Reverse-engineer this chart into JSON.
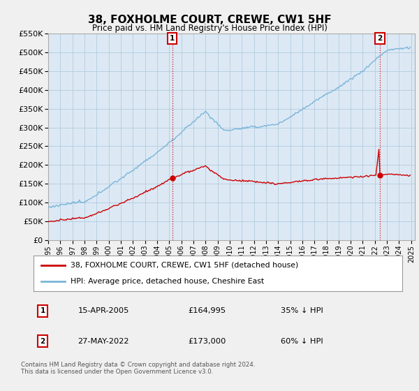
{
  "title": "38, FOXHOLME COURT, CREWE, CW1 5HF",
  "subtitle": "Price paid vs. HM Land Registry's House Price Index (HPI)",
  "ylim": [
    0,
    550000
  ],
  "yticks": [
    0,
    50000,
    100000,
    150000,
    200000,
    250000,
    300000,
    350000,
    400000,
    450000,
    500000,
    550000
  ],
  "hpi_color": "#7ab5d8",
  "price_color": "#cc0000",
  "annotation1": {
    "label": "1",
    "date": "15-APR-2005",
    "price": "£164,995",
    "pct": "35% ↓ HPI"
  },
  "annotation2": {
    "label": "2",
    "date": "27-MAY-2022",
    "price": "£173,000",
    "pct": "60% ↓ HPI"
  },
  "legend1": "38, FOXHOLME COURT, CREWE, CW1 5HF (detached house)",
  "legend2": "HPI: Average price, detached house, Cheshire East",
  "footer": "Contains HM Land Registry data © Crown copyright and database right 2024.\nThis data is licensed under the Open Government Licence v3.0.",
  "background_color": "#f0f0f0",
  "plot_bg": "#dce9f5",
  "grid_color": "#b8cfe0",
  "vline_color": "#cc0000",
  "marker_box_color": "#cc0000"
}
